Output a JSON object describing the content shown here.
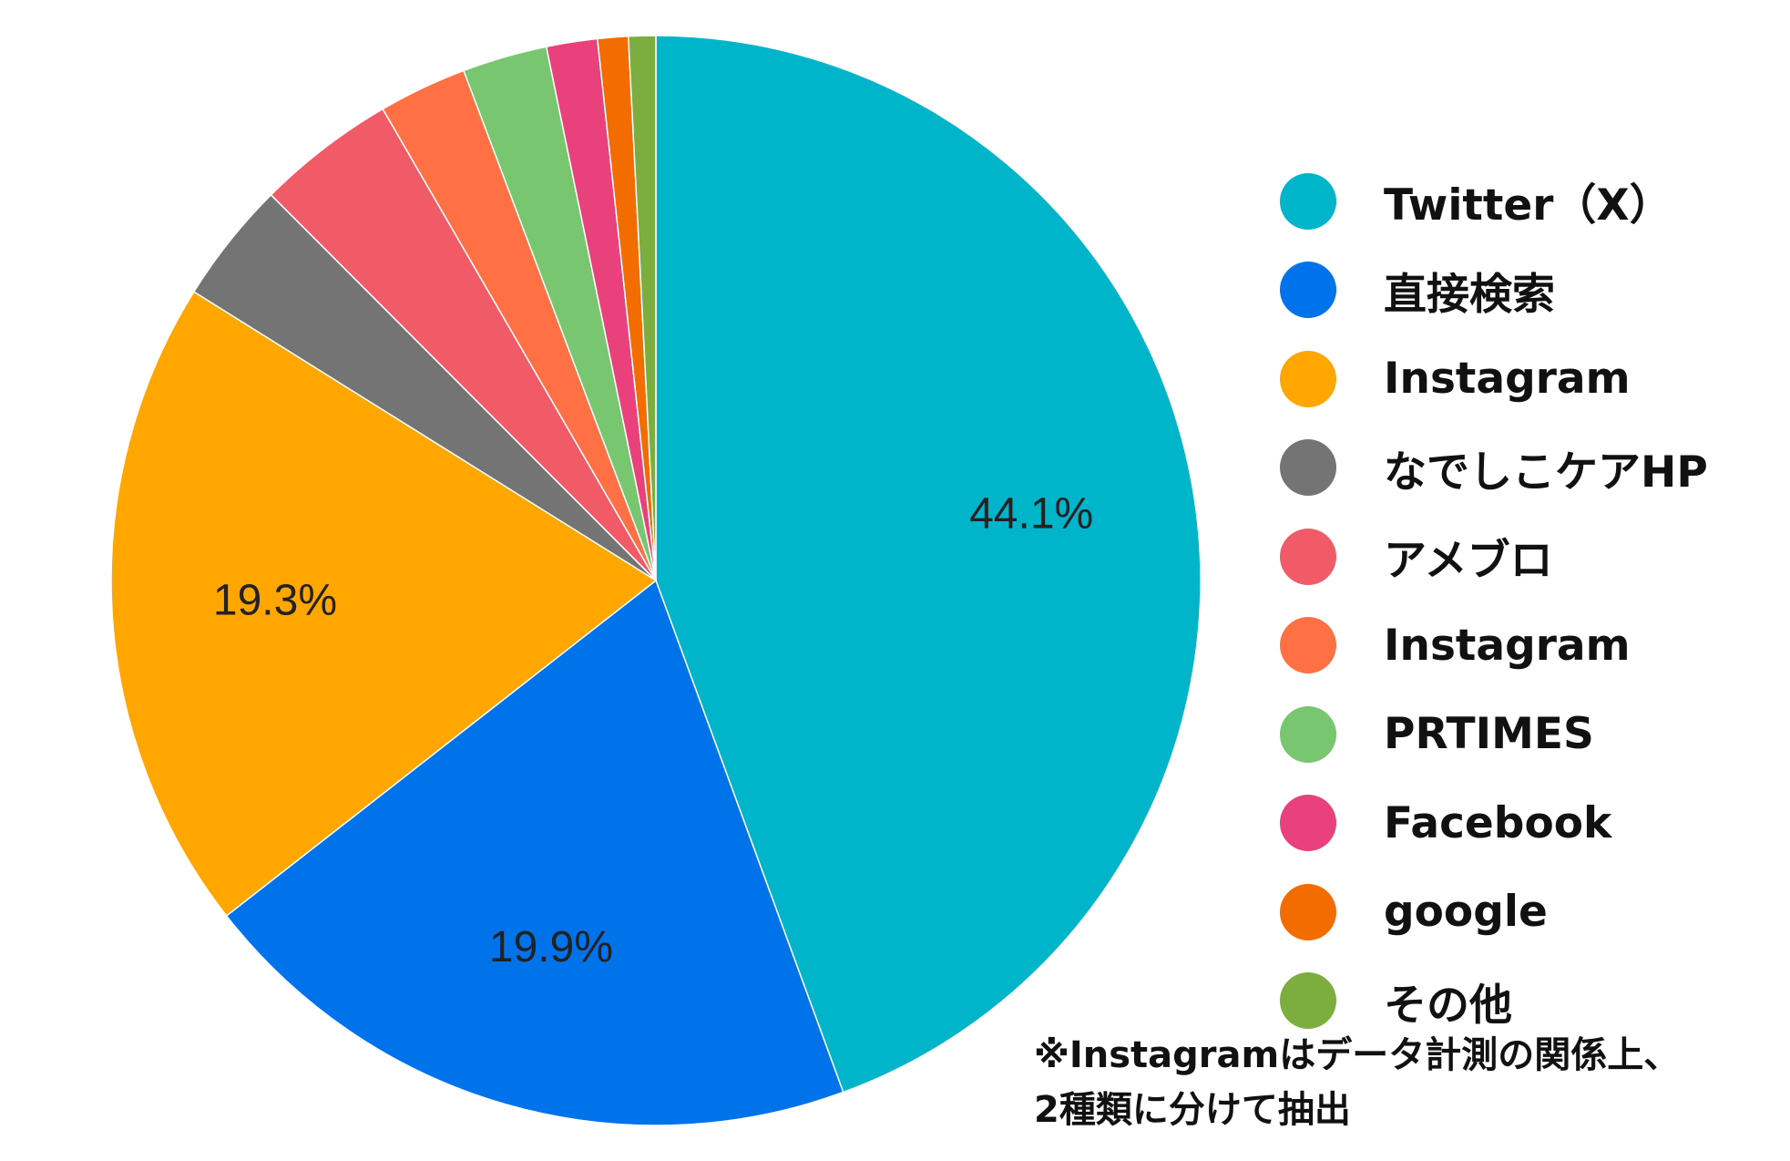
{
  "chart_data": {
    "type": "pie",
    "title": "",
    "start_angle": "12 o'clock",
    "direction": "clockwise",
    "legend_position": "right",
    "slices": [
      {
        "label": "Twitter（X）",
        "value": 44.1,
        "color": "#00B4C9",
        "data_label": "44.1%"
      },
      {
        "label": "直接検索",
        "value": 19.9,
        "color": "#0073EA",
        "data_label": "19.9%"
      },
      {
        "label": "Instagram",
        "value": 19.3,
        "color": "#FFA600",
        "data_label": "19.3%"
      },
      {
        "label": "なでしこケアHP",
        "value": 3.6,
        "color": "#747474",
        "data_label": ""
      },
      {
        "label": "アメブロ",
        "value": 4.1,
        "color": "#F05B67",
        "data_label": ""
      },
      {
        "label": "Instagram",
        "value": 2.6,
        "color": "#FF7045",
        "data_label": ""
      },
      {
        "label": "PRTIMES",
        "value": 2.5,
        "color": "#79C670",
        "data_label": ""
      },
      {
        "label": "Facebook",
        "value": 1.5,
        "color": "#E8417C",
        "data_label": ""
      },
      {
        "label": "google",
        "value": 0.9,
        "color": "#F26C00",
        "data_label": ""
      },
      {
        "label": "その他",
        "value": 0.8,
        "color": "#7CAE3F",
        "data_label": ""
      }
    ]
  },
  "note": {
    "line1": "※Instagramはデータ計測の関係上、",
    "line2": "2種類に分けて抽出"
  }
}
